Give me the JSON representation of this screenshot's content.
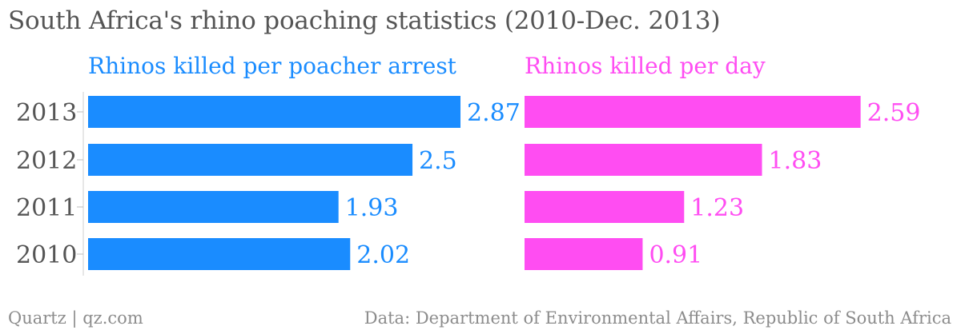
{
  "title": "South Africa's rhino poaching statistics (2010-Dec. 2013)",
  "footer": {
    "source_left": "Quartz | qz.com",
    "source_right": "Data: Department of Environmental Affairs, Republic of South Africa"
  },
  "colors": {
    "series1": "#1a8cff",
    "series2": "#ff4df2",
    "axis_text": "#555555",
    "title": "#555555",
    "footer": "#8c8c8c"
  },
  "chart_data": {
    "type": "bar",
    "orientation": "horizontal",
    "title": "South Africa's rhino poaching statistics (2010-Dec. 2013)",
    "categories": [
      "2013",
      "2012",
      "2011",
      "2010"
    ],
    "series": [
      {
        "name": "Rhinos killed per poacher arrest",
        "values": [
          2.87,
          2.5,
          1.93,
          2.02
        ],
        "labels": [
          "2.87",
          "2.5",
          "1.93",
          "2.02"
        ]
      },
      {
        "name": "Rhinos killed per day",
        "values": [
          2.59,
          1.83,
          1.23,
          0.91
        ],
        "labels": [
          "2.59",
          "1.83",
          "1.23",
          "0.91"
        ]
      }
    ],
    "grid": false,
    "legend": "series titles above panels"
  }
}
